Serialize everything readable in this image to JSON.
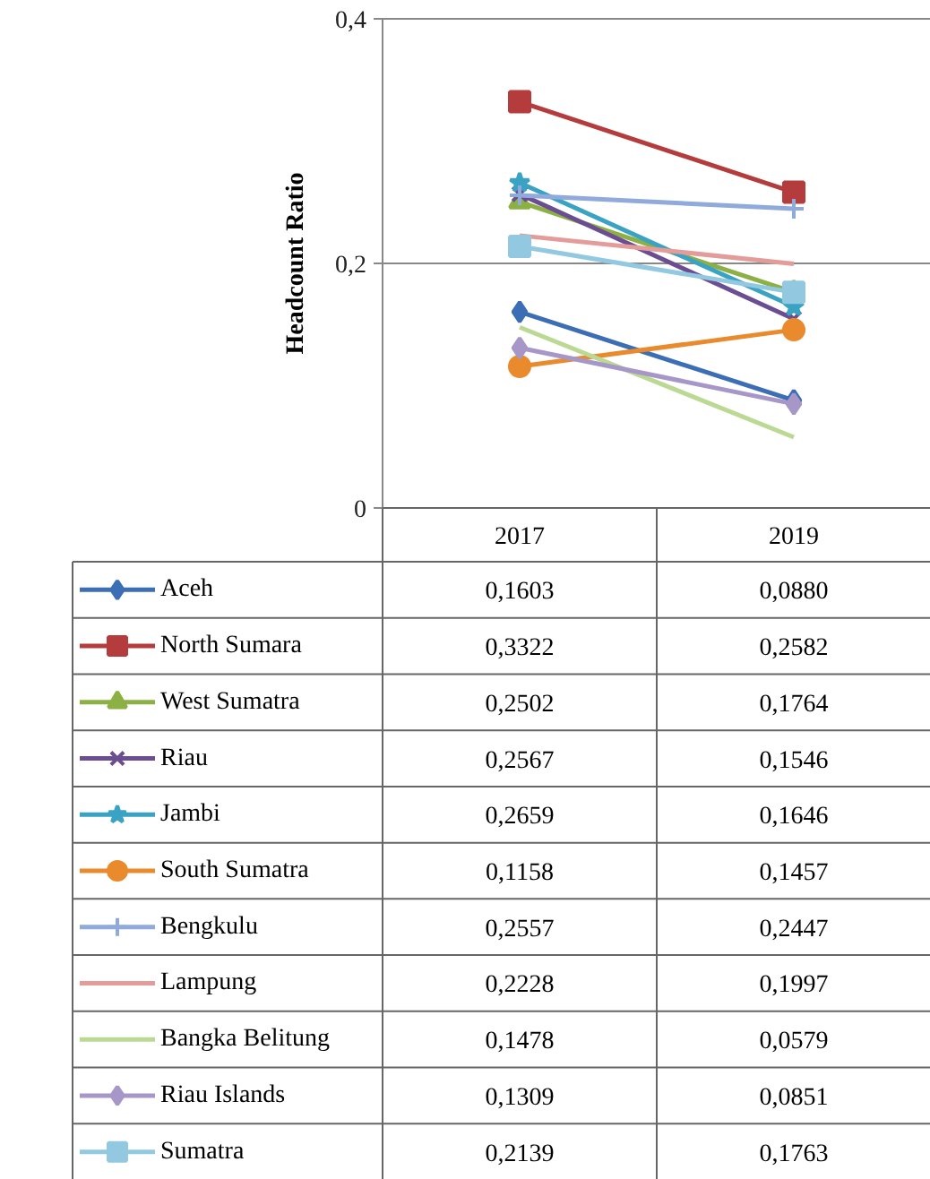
{
  "chart_data": {
    "type": "line",
    "ylabel": "Headcount Ratio",
    "categories": [
      "2017",
      "2019"
    ],
    "ylim": [
      0,
      0.4
    ],
    "yticks": [
      0,
      {
        "value": 0.2,
        "label": "0,2"
      },
      {
        "value": 0.4,
        "label": "0,4"
      }
    ],
    "grid": "y",
    "legend": "bottom",
    "series": [
      {
        "name": "Aceh",
        "color": "#3b6eb4",
        "marker": "diamond",
        "values": [
          0.1603,
          0.088
        ],
        "value_labels": [
          "0,1603",
          "0,0880"
        ]
      },
      {
        "name": "North Sumara",
        "color": "#b43c3c",
        "marker": "square",
        "values": [
          0.3322,
          0.2582
        ],
        "value_labels": [
          "0,3322",
          "0,2582"
        ]
      },
      {
        "name": "West Sumatra",
        "color": "#8cb043",
        "marker": "triangle",
        "values": [
          0.2502,
          0.1764
        ],
        "value_labels": [
          "0,2502",
          "0,1764"
        ]
      },
      {
        "name": "Riau",
        "color": "#6b4d91",
        "marker": "x",
        "values": [
          0.2567,
          0.1546
        ],
        "value_labels": [
          "0,2567",
          "0,1546"
        ]
      },
      {
        "name": "Jambi",
        "color": "#3aa2c2",
        "marker": "star",
        "values": [
          0.2659,
          0.1646
        ],
        "value_labels": [
          "0,2659",
          "0,1646"
        ]
      },
      {
        "name": "South Sumatra",
        "color": "#e98a2c",
        "marker": "circle",
        "values": [
          0.1158,
          0.1457
        ],
        "value_labels": [
          "0,1158",
          "0,1457"
        ]
      },
      {
        "name": "Bengkulu",
        "color": "#8faadb",
        "marker": "cross",
        "values": [
          0.2557,
          0.2447
        ],
        "value_labels": [
          "0,2557",
          "0,2447"
        ]
      },
      {
        "name": "Lampung",
        "color": "#e39c9a",
        "marker": "none",
        "values": [
          0.2228,
          0.1997
        ],
        "value_labels": [
          "0,2228",
          "0,1997"
        ]
      },
      {
        "name": "Bangka Belitung",
        "color": "#bcd994",
        "marker": "none",
        "values": [
          0.1478,
          0.0579
        ],
        "value_labels": [
          "0,1478",
          "0,0579"
        ]
      },
      {
        "name": "Riau Islands",
        "color": "#a797c9",
        "marker": "diamond",
        "values": [
          0.1309,
          0.0851
        ],
        "value_labels": [
          "0,1309",
          "0,0851"
        ]
      },
      {
        "name": "Sumatra",
        "color": "#92c9e0",
        "marker": "square",
        "values": [
          0.2139,
          0.1763
        ],
        "value_labels": [
          "0,2139",
          "0,1763"
        ]
      }
    ]
  }
}
